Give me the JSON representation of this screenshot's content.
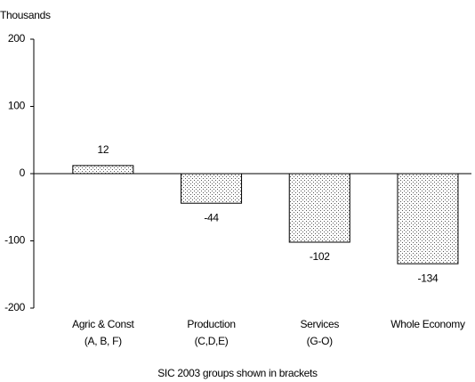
{
  "chart_data": {
    "type": "bar",
    "y_label": "Thousands",
    "x_label": "SIC 2003 groups shown in brackets",
    "categories": [
      "Agric & Const",
      "Production",
      "Services",
      "Whole Economy"
    ],
    "category_codes": [
      "(A, B, F)",
      "(C,D,E)",
      "(G-O)",
      null
    ],
    "values": [
      12,
      -44,
      -102,
      -134
    ],
    "ylim": [
      -200,
      200
    ],
    "yticks": [
      -200,
      -100,
      0,
      100,
      200
    ],
    "grid": false
  }
}
